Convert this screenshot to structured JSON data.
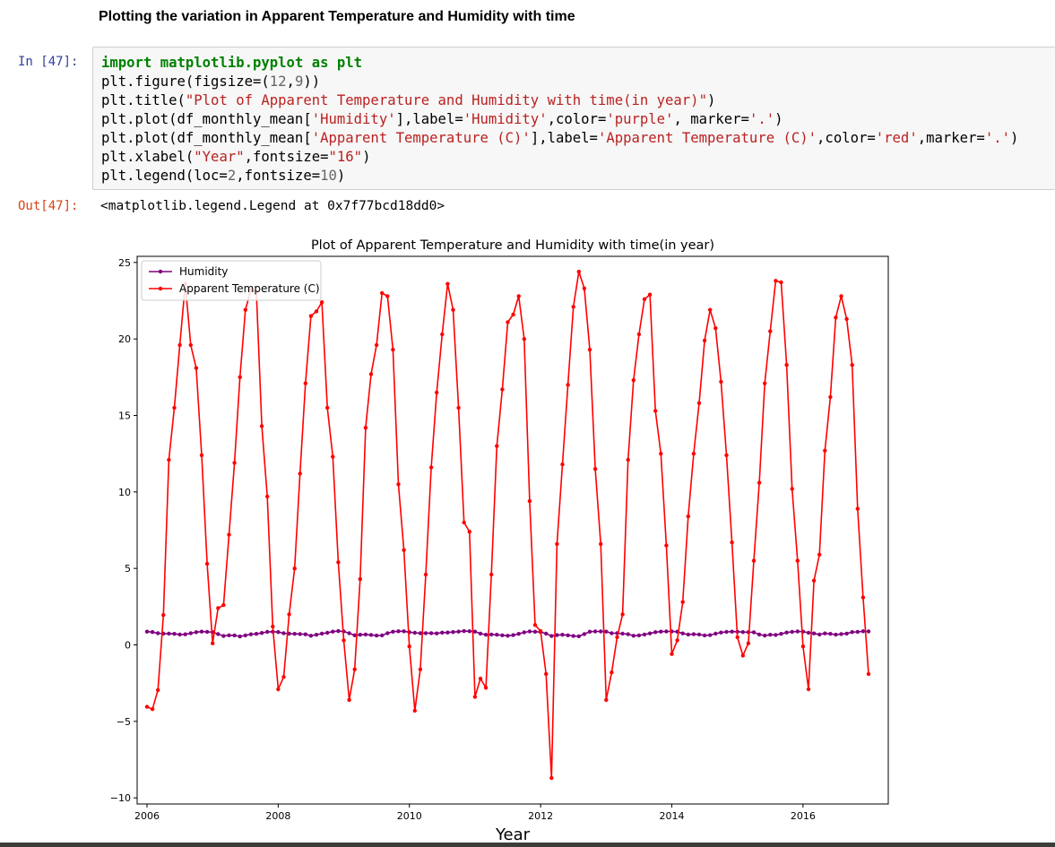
{
  "notebook": {
    "heading": "Plotting the variation in Apparent Temperature and Humidity with time",
    "in_prompt": "In [47]:",
    "out_prompt": "Out[47]:",
    "code": {
      "l1": {
        "kw1": "import",
        "mod": " matplotlib.pyplot ",
        "kw2": "as",
        "alias": " plt"
      },
      "l2": {
        "a": "plt.figure(figsize=(",
        "n1": "12",
        "b": ",",
        "n2": "9",
        "c": "))"
      },
      "l3": {
        "a": "plt.title(",
        "s": "\"Plot of Apparent Temperature and Humidity with time(in year)\"",
        "b": ")"
      },
      "l4": {
        "a": "plt.plot(df_monthly_mean[",
        "s1": "'Humidity'",
        "b": "],label=",
        "s2": "'Humidity'",
        "c": ",color=",
        "s3": "'purple'",
        "d": ", marker=",
        "s4": "'.'",
        "e": ")"
      },
      "l5": {
        "a": "plt.plot(df_monthly_mean[",
        "s1": "'Apparent Temperature (C)'",
        "b": "],label=",
        "s2": "'Apparent Temperature (C)'",
        "c": ",color=",
        "s3": "'red'",
        "d": ",marker=",
        "s4": "'.'",
        "e": ")"
      },
      "l6": {
        "a": "plt.xlabel(",
        "s1": "\"Year\"",
        "b": ",fontsize=",
        "s2": "\"16\"",
        "c": ")"
      },
      "l7": {
        "a": "plt.legend(loc=",
        "n1": "2",
        "b": ",fontsize=",
        "n2": "10",
        "c": ")"
      }
    },
    "output_text": "<matplotlib.legend.Legend at 0x7f77bcd18dd0>"
  },
  "chart_data": {
    "type": "line",
    "title": "Plot of Apparent Temperature and Humidity with time(in year)",
    "xlabel": "Year",
    "ylabel": "",
    "x_start_year": 2006,
    "x_start_month": 1,
    "xlim": [
      2005.85,
      2017.3
    ],
    "ylim": [
      -10.4,
      25.4
    ],
    "xticks": [
      2006,
      2008,
      2010,
      2012,
      2014,
      2016
    ],
    "yticks": [
      -10,
      -5,
      0,
      5,
      10,
      15,
      20,
      25
    ],
    "legend_loc": "upper left",
    "grid": false,
    "series": [
      {
        "name": "Humidity",
        "color": "#800080",
        "marker": ".",
        "values": [
          0.87,
          0.84,
          0.76,
          0.73,
          0.74,
          0.72,
          0.68,
          0.69,
          0.76,
          0.83,
          0.87,
          0.85,
          0.83,
          0.71,
          0.58,
          0.63,
          0.62,
          0.55,
          0.62,
          0.69,
          0.72,
          0.78,
          0.85,
          0.86,
          0.84,
          0.76,
          0.73,
          0.72,
          0.71,
          0.69,
          0.6,
          0.66,
          0.74,
          0.79,
          0.87,
          0.9,
          0.88,
          0.76,
          0.63,
          0.66,
          0.68,
          0.65,
          0.61,
          0.62,
          0.76,
          0.86,
          0.89,
          0.89,
          0.83,
          0.79,
          0.76,
          0.77,
          0.77,
          0.75,
          0.8,
          0.81,
          0.84,
          0.87,
          0.9,
          0.89,
          0.87,
          0.74,
          0.66,
          0.68,
          0.66,
          0.63,
          0.6,
          0.64,
          0.72,
          0.82,
          0.88,
          0.86,
          0.84,
          0.74,
          0.58,
          0.64,
          0.66,
          0.63,
          0.58,
          0.56,
          0.71,
          0.86,
          0.88,
          0.88,
          0.87,
          0.76,
          0.77,
          0.73,
          0.7,
          0.6,
          0.62,
          0.68,
          0.75,
          0.83,
          0.87,
          0.88,
          0.88,
          0.86,
          0.75,
          0.68,
          0.7,
          0.68,
          0.62,
          0.64,
          0.73,
          0.81,
          0.85,
          0.87,
          0.86,
          0.84,
          0.83,
          0.82,
          0.68,
          0.61,
          0.66,
          0.65,
          0.72,
          0.81,
          0.85,
          0.88,
          0.87,
          0.79,
          0.75,
          0.68,
          0.75,
          0.72,
          0.67,
          0.71,
          0.74,
          0.84,
          0.85,
          0.89,
          0.88
        ]
      },
      {
        "name": "Apparent Temperature (C)",
        "color": "#ff0000",
        "marker": ".",
        "values": [
          -4.05,
          -4.2,
          -2.95,
          1.95,
          12.1,
          15.5,
          19.6,
          23.6,
          19.6,
          18.1,
          12.4,
          5.3,
          0.1,
          2.4,
          2.6,
          7.2,
          11.9,
          17.5,
          21.9,
          23.2,
          23.1,
          14.3,
          9.7,
          1.2,
          -2.9,
          -2.1,
          2.0,
          5.0,
          11.2,
          17.1,
          21.5,
          21.8,
          22.4,
          15.5,
          12.3,
          5.4,
          0.3,
          -3.6,
          -1.6,
          4.3,
          14.2,
          17.7,
          19.6,
          23.0,
          22.8,
          19.3,
          10.5,
          6.2,
          -0.1,
          -4.3,
          -1.6,
          4.6,
          11.6,
          16.5,
          20.3,
          23.6,
          21.9,
          15.5,
          8.0,
          7.4,
          -3.4,
          -2.2,
          -2.8,
          4.6,
          13.0,
          16.7,
          21.1,
          21.6,
          22.8,
          20.0,
          9.4,
          1.3,
          0.9,
          -1.9,
          -8.7,
          6.6,
          11.8,
          17.0,
          22.1,
          24.4,
          23.3,
          19.3,
          11.5,
          6.6,
          -3.6,
          -1.8,
          0.5,
          2.0,
          12.1,
          17.3,
          20.3,
          22.6,
          22.9,
          15.3,
          12.5,
          6.5,
          -0.6,
          0.3,
          2.8,
          8.4,
          12.5,
          15.8,
          19.9,
          21.9,
          20.7,
          17.2,
          12.4,
          6.7,
          0.5,
          -0.7,
          0.1,
          5.5,
          10.6,
          17.1,
          20.5,
          23.8,
          23.7,
          18.3,
          10.2,
          5.5,
          -0.1,
          -2.9,
          4.2,
          5.9,
          12.7,
          16.2,
          21.4,
          22.8,
          21.3,
          18.3,
          8.9,
          3.1,
          -1.9
        ]
      }
    ]
  }
}
